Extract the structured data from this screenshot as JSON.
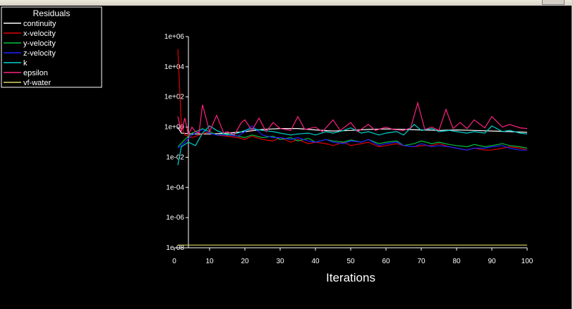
{
  "chart_data": {
    "type": "line",
    "title": "",
    "legend_title": "Residuals",
    "legend_position": "top-left",
    "xlabel": "Iterations",
    "ylabel": "",
    "xlim": [
      0,
      100
    ],
    "ylim": [
      1e-08,
      1000000.0
    ],
    "y_scale": "log",
    "grid": false,
    "xticks": [
      0,
      10,
      20,
      30,
      40,
      50,
      60,
      70,
      80,
      90,
      100
    ],
    "xtick_labels": [
      "0",
      "10",
      "20",
      "30",
      "40",
      "50",
      "60",
      "70",
      "80",
      "90",
      "100"
    ],
    "yticks": [
      1000000.0,
      10000.0,
      100.0,
      1,
      0.01,
      0.0001,
      1e-06,
      1e-08
    ],
    "ytick_labels": [
      "1e+06",
      "1e+04",
      "1e+02",
      "1e+00",
      "1e-02",
      "1e-04",
      "1e-06",
      "1e-08"
    ],
    "series": [
      {
        "name": "continuity",
        "color": "#ffffff",
        "x": [
          1,
          2,
          5,
          10,
          15,
          20,
          25,
          30,
          35,
          40,
          45,
          50,
          55,
          60,
          65,
          70,
          75,
          80,
          85,
          90,
          95,
          100
        ],
        "y": [
          1.0,
          0.4,
          0.35,
          0.35,
          0.4,
          0.5,
          0.7,
          0.8,
          0.8,
          0.65,
          0.55,
          0.6,
          0.7,
          0.75,
          0.7,
          0.65,
          0.6,
          0.65,
          0.6,
          0.55,
          0.5,
          0.45
        ]
      },
      {
        "name": "x-velocity",
        "color": "#e00000",
        "x": [
          1,
          2,
          3,
          5,
          8,
          10,
          12,
          15,
          18,
          20,
          22,
          25,
          28,
          30,
          33,
          35,
          38,
          40,
          43,
          45,
          48,
          50,
          53,
          55,
          58,
          60,
          63,
          65,
          68,
          70,
          73,
          75,
          78,
          80,
          83,
          85,
          88,
          90,
          93,
          95,
          98,
          100
        ],
        "y": [
          150000,
          1.5,
          0.3,
          0.2,
          0.35,
          0.5,
          0.3,
          0.25,
          0.2,
          0.15,
          0.25,
          0.15,
          0.12,
          0.2,
          0.1,
          0.15,
          0.08,
          0.1,
          0.08,
          0.06,
          0.1,
          0.06,
          0.08,
          0.1,
          0.05,
          0.06,
          0.08,
          0.06,
          0.05,
          0.06,
          0.06,
          0.08,
          0.05,
          0.04,
          0.03,
          0.04,
          0.03,
          0.03,
          0.04,
          0.05,
          0.04,
          0.03
        ]
      },
      {
        "name": "y-velocity",
        "color": "#00c040",
        "x": [
          1,
          3,
          5,
          8,
          10,
          12,
          15,
          18,
          20,
          22,
          25,
          28,
          30,
          33,
          35,
          38,
          40,
          43,
          45,
          48,
          50,
          53,
          55,
          58,
          60,
          63,
          65,
          68,
          70,
          73,
          75,
          78,
          80,
          83,
          85,
          88,
          90,
          93,
          95,
          98,
          100
        ],
        "y": [
          0.05,
          0.15,
          0.4,
          0.8,
          0.5,
          0.3,
          0.35,
          0.25,
          0.2,
          0.3,
          0.2,
          0.25,
          0.15,
          0.2,
          0.12,
          0.18,
          0.1,
          0.15,
          0.12,
          0.1,
          0.14,
          0.1,
          0.15,
          0.08,
          0.1,
          0.12,
          0.06,
          0.08,
          0.12,
          0.08,
          0.1,
          0.07,
          0.06,
          0.05,
          0.07,
          0.05,
          0.06,
          0.08,
          0.06,
          0.05,
          0.04
        ]
      },
      {
        "name": "z-velocity",
        "color": "#2020ff",
        "x": [
          1,
          3,
          5,
          8,
          10,
          12,
          15,
          18,
          20,
          22,
          25,
          28,
          30,
          33,
          35,
          38,
          40,
          43,
          45,
          48,
          50,
          53,
          55,
          58,
          60,
          63,
          65,
          68,
          70,
          73,
          75,
          78,
          80,
          83,
          85,
          88,
          90,
          93,
          95,
          98,
          100
        ],
        "y": [
          0.04,
          0.1,
          0.3,
          0.7,
          0.4,
          0.3,
          0.3,
          0.25,
          0.5,
          1.2,
          0.3,
          0.2,
          0.2,
          0.15,
          0.2,
          0.12,
          0.1,
          0.15,
          0.1,
          0.08,
          0.12,
          0.1,
          0.15,
          0.06,
          0.08,
          0.1,
          0.06,
          0.05,
          0.08,
          0.05,
          0.06,
          0.05,
          0.04,
          0.03,
          0.04,
          0.04,
          0.05,
          0.06,
          0.04,
          0.03,
          0.03
        ]
      },
      {
        "name": "k",
        "color": "#00d0d0",
        "x": [
          1,
          2,
          4,
          6,
          8,
          10,
          12,
          15,
          18,
          20,
          22,
          25,
          28,
          30,
          33,
          35,
          38,
          40,
          43,
          45,
          48,
          50,
          53,
          55,
          58,
          60,
          63,
          65,
          68,
          70,
          73,
          75,
          78,
          80,
          83,
          85,
          88,
          90,
          93,
          95,
          98,
          100
        ],
        "y": [
          0.003,
          0.05,
          0.1,
          0.06,
          0.4,
          1.2,
          0.6,
          0.3,
          0.4,
          0.6,
          0.8,
          0.6,
          0.5,
          0.4,
          0.3,
          0.35,
          0.4,
          0.3,
          0.5,
          0.4,
          0.6,
          0.9,
          0.4,
          0.5,
          0.3,
          0.4,
          0.5,
          0.3,
          1.5,
          0.6,
          0.8,
          0.5,
          0.6,
          0.5,
          0.4,
          0.5,
          0.4,
          1.2,
          0.5,
          0.6,
          0.4,
          0.35
        ]
      },
      {
        "name": "epsilon",
        "color": "#ff2080",
        "x": [
          1,
          2,
          3,
          4,
          5,
          6,
          7,
          8,
          10,
          12,
          14,
          15,
          17,
          19,
          20,
          22,
          24,
          26,
          28,
          30,
          33,
          35,
          37,
          40,
          42,
          45,
          47,
          50,
          52,
          55,
          57,
          60,
          62,
          65,
          67,
          69,
          71,
          73,
          75,
          77,
          79,
          81,
          83,
          85,
          88,
          90,
          93,
          95,
          98,
          100
        ],
        "y": [
          5,
          0.5,
          4,
          0.3,
          1,
          0.5,
          0.4,
          30,
          0.5,
          6,
          0.4,
          0.5,
          0.3,
          2,
          3,
          0.6,
          4,
          0.5,
          2,
          0.8,
          0.6,
          5,
          0.7,
          1,
          0.5,
          3,
          0.6,
          2,
          0.5,
          1.5,
          0.6,
          1,
          0.7,
          0.6,
          0.9,
          40,
          0.7,
          1,
          0.6,
          15,
          0.8,
          2,
          0.8,
          3,
          0.9,
          5,
          1,
          1.5,
          0.9,
          0.8
        ]
      },
      {
        "name": "vf-water",
        "color": "#d8d860",
        "x": [
          1,
          20,
          40,
          60,
          80,
          100
        ],
        "y": [
          1.5e-08,
          1.5e-08,
          1.5e-08,
          1.5e-08,
          1.5e-08,
          1.5e-08
        ]
      }
    ]
  }
}
